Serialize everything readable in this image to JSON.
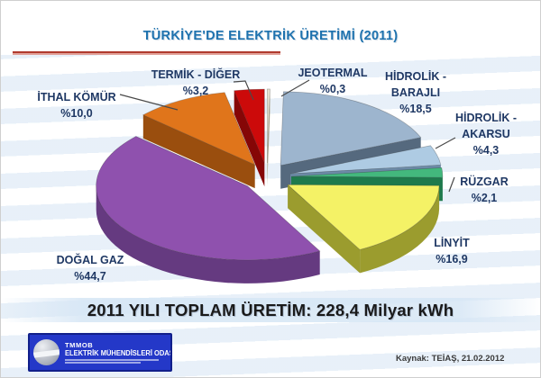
{
  "slide": {
    "title": "TÜRKİYE'DE ELEKTRİK ÜRETİMİ (2011)",
    "title_color": "#1E72AE",
    "underline_color": "#B03A2E",
    "total_banner": "2011 YILI TOPLAM ÜRETİM: 228,4 Milyar kWh",
    "source": "Kaynak: TEİAŞ, 21.02.2012",
    "logo": {
      "org": "TMMOB",
      "name": "ELEKTRİK MÜHENDİSLERİ ODASI",
      "bg_color": "#2438C8",
      "border_color": "#111F8A"
    }
  },
  "chart_data": {
    "type": "pie",
    "style": "3d-exploded",
    "title": "TÜRKİYE'DE ELEKTRİK ÜRETİMİ (2011)",
    "unit": "%",
    "start_angle_deg": 0,
    "direction": "clockwise",
    "total_label": "228,4 Milyar kWh",
    "label_color": "#1F3864",
    "slices": [
      {
        "label": "JEOTERMAL",
        "value": 0.3,
        "value_label": "%0,3",
        "color": "#E9E4D1",
        "side_color": "#B3AC8F"
      },
      {
        "label": "HİDROLİK -\nBARAJLI",
        "value": 18.5,
        "value_label": "%18,5",
        "color": "#9DB5CE",
        "side_color": "#55697E"
      },
      {
        "label": "HİDROLİK -\nAKARSU",
        "value": 4.3,
        "value_label": "%4,3",
        "color": "#AECBE3",
        "side_color": "#6C8AA6"
      },
      {
        "label": "RÜZGAR",
        "value": 2.1,
        "value_label": "%2,1",
        "color": "#43B87D",
        "side_color": "#1E7A4C"
      },
      {
        "label": "LİNYİT",
        "value": 16.9,
        "value_label": "%16,9",
        "color": "#F4F266",
        "side_color": "#9B9C2E"
      },
      {
        "label": "DOĞAL GAZ",
        "value": 44.7,
        "value_label": "%44,7",
        "color": "#8F51AE",
        "side_color": "#653A80"
      },
      {
        "label": "İTHAL KÖMÜR",
        "value": 10.0,
        "value_label": "%10,0",
        "color": "#E0751B",
        "side_color": "#9A4E0E"
      },
      {
        "label": "TERMİK - DİĞER",
        "value": 3.2,
        "value_label": "%3,2",
        "color": "#CC0A0A",
        "side_color": "#850606"
      }
    ]
  }
}
